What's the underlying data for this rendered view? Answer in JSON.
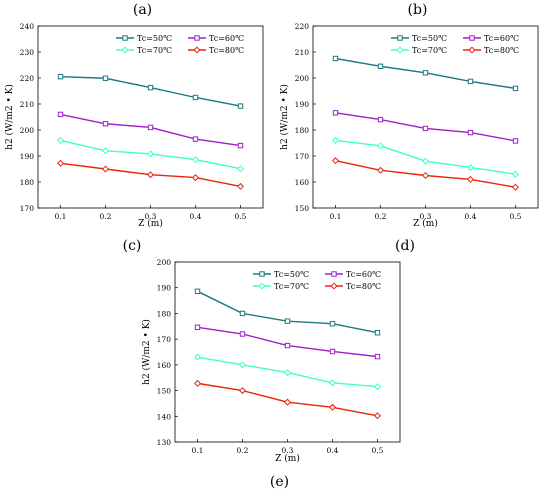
{
  "chart_data": [
    {
      "type": "line",
      "panel_label": "(a)",
      "xlabel": "Z (m)",
      "ylabel": "h2 (W/m2 • K)",
      "x": [
        0.1,
        0.2,
        0.3,
        0.4,
        0.5
      ],
      "xticks": [
        "0.1",
        "0.2",
        "0.3",
        "0.4",
        "0.5"
      ],
      "ylim": [
        170,
        240
      ],
      "yticks": [
        170,
        180,
        190,
        200,
        210,
        220,
        230,
        240
      ],
      "legend_position": "top-right",
      "series": [
        {
          "name": "Tc=50℃",
          "color": "#1b7a7e",
          "marker": "square",
          "values": [
            220.5,
            219.9,
            216.3,
            212.5,
            209.2
          ]
        },
        {
          "name": "Tc=60℃",
          "color": "#a020c8",
          "marker": "square",
          "values": [
            206.0,
            202.4,
            201.0,
            196.5,
            194.0
          ]
        },
        {
          "name": "Tc=70℃",
          "color": "#3dffc8",
          "marker": "diamond",
          "values": [
            196.0,
            192.0,
            190.8,
            188.6,
            185.1
          ]
        },
        {
          "name": "Tc=80℃",
          "color": "#e8250c",
          "marker": "diamond",
          "values": [
            187.2,
            185.0,
            182.8,
            181.7,
            178.3
          ]
        }
      ]
    },
    {
      "type": "line",
      "panel_label": "(b)",
      "xlabel": "Z (m)",
      "ylabel": "h2 (W/m2 • K)",
      "x": [
        0.1,
        0.2,
        0.3,
        0.4,
        0.5
      ],
      "xticks": [
        "0.1",
        "0.2",
        "0.3",
        "0.4",
        "0.5"
      ],
      "ylim": [
        150,
        220
      ],
      "yticks": [
        150,
        160,
        170,
        180,
        190,
        200,
        210,
        220
      ],
      "legend_position": "top-right",
      "series": [
        {
          "name": "Tc=50℃",
          "color": "#1b7a7e",
          "marker": "square",
          "values": [
            207.5,
            204.5,
            202.0,
            198.7,
            196.0
          ]
        },
        {
          "name": "Tc=60℃",
          "color": "#a020c8",
          "marker": "square",
          "values": [
            186.6,
            184.0,
            180.6,
            179.0,
            175.8
          ]
        },
        {
          "name": "Tc=70℃",
          "color": "#3dffc8",
          "marker": "diamond",
          "values": [
            176.0,
            173.9,
            168.0,
            165.6,
            163.0
          ]
        },
        {
          "name": "Tc=80℃",
          "color": "#e8250c",
          "marker": "diamond",
          "values": [
            168.2,
            164.5,
            162.5,
            161.0,
            158.0
          ]
        }
      ]
    },
    {
      "type": "line",
      "panel_label": "(e)",
      "xlabel": "Z (m)",
      "ylabel": "h2 (W/m2 • K)",
      "x": [
        0.1,
        0.2,
        0.3,
        0.4,
        0.5
      ],
      "xticks": [
        "0.1",
        "0.2",
        "0.3",
        "0.4",
        "0.5"
      ],
      "ylim": [
        130,
        200
      ],
      "yticks": [
        130,
        140,
        150,
        160,
        170,
        180,
        190,
        200
      ],
      "legend_position": "top-right",
      "series": [
        {
          "name": "Tc=50℃",
          "color": "#1b7a7e",
          "marker": "square",
          "values": [
            188.6,
            180.0,
            177.0,
            176.0,
            172.5
          ]
        },
        {
          "name": "Tc=60℃",
          "color": "#a020c8",
          "marker": "square",
          "values": [
            174.6,
            172.0,
            167.5,
            165.2,
            163.2
          ]
        },
        {
          "name": "Tc=70℃",
          "color": "#3dffc8",
          "marker": "diamond",
          "values": [
            163.0,
            160.0,
            157.0,
            153.0,
            151.5
          ]
        },
        {
          "name": "Tc=80℃",
          "color": "#e8250c",
          "marker": "diamond",
          "values": [
            152.8,
            150.0,
            145.5,
            143.5,
            140.2
          ]
        }
      ]
    }
  ],
  "between_labels": [
    "(c)",
    "(d)"
  ]
}
